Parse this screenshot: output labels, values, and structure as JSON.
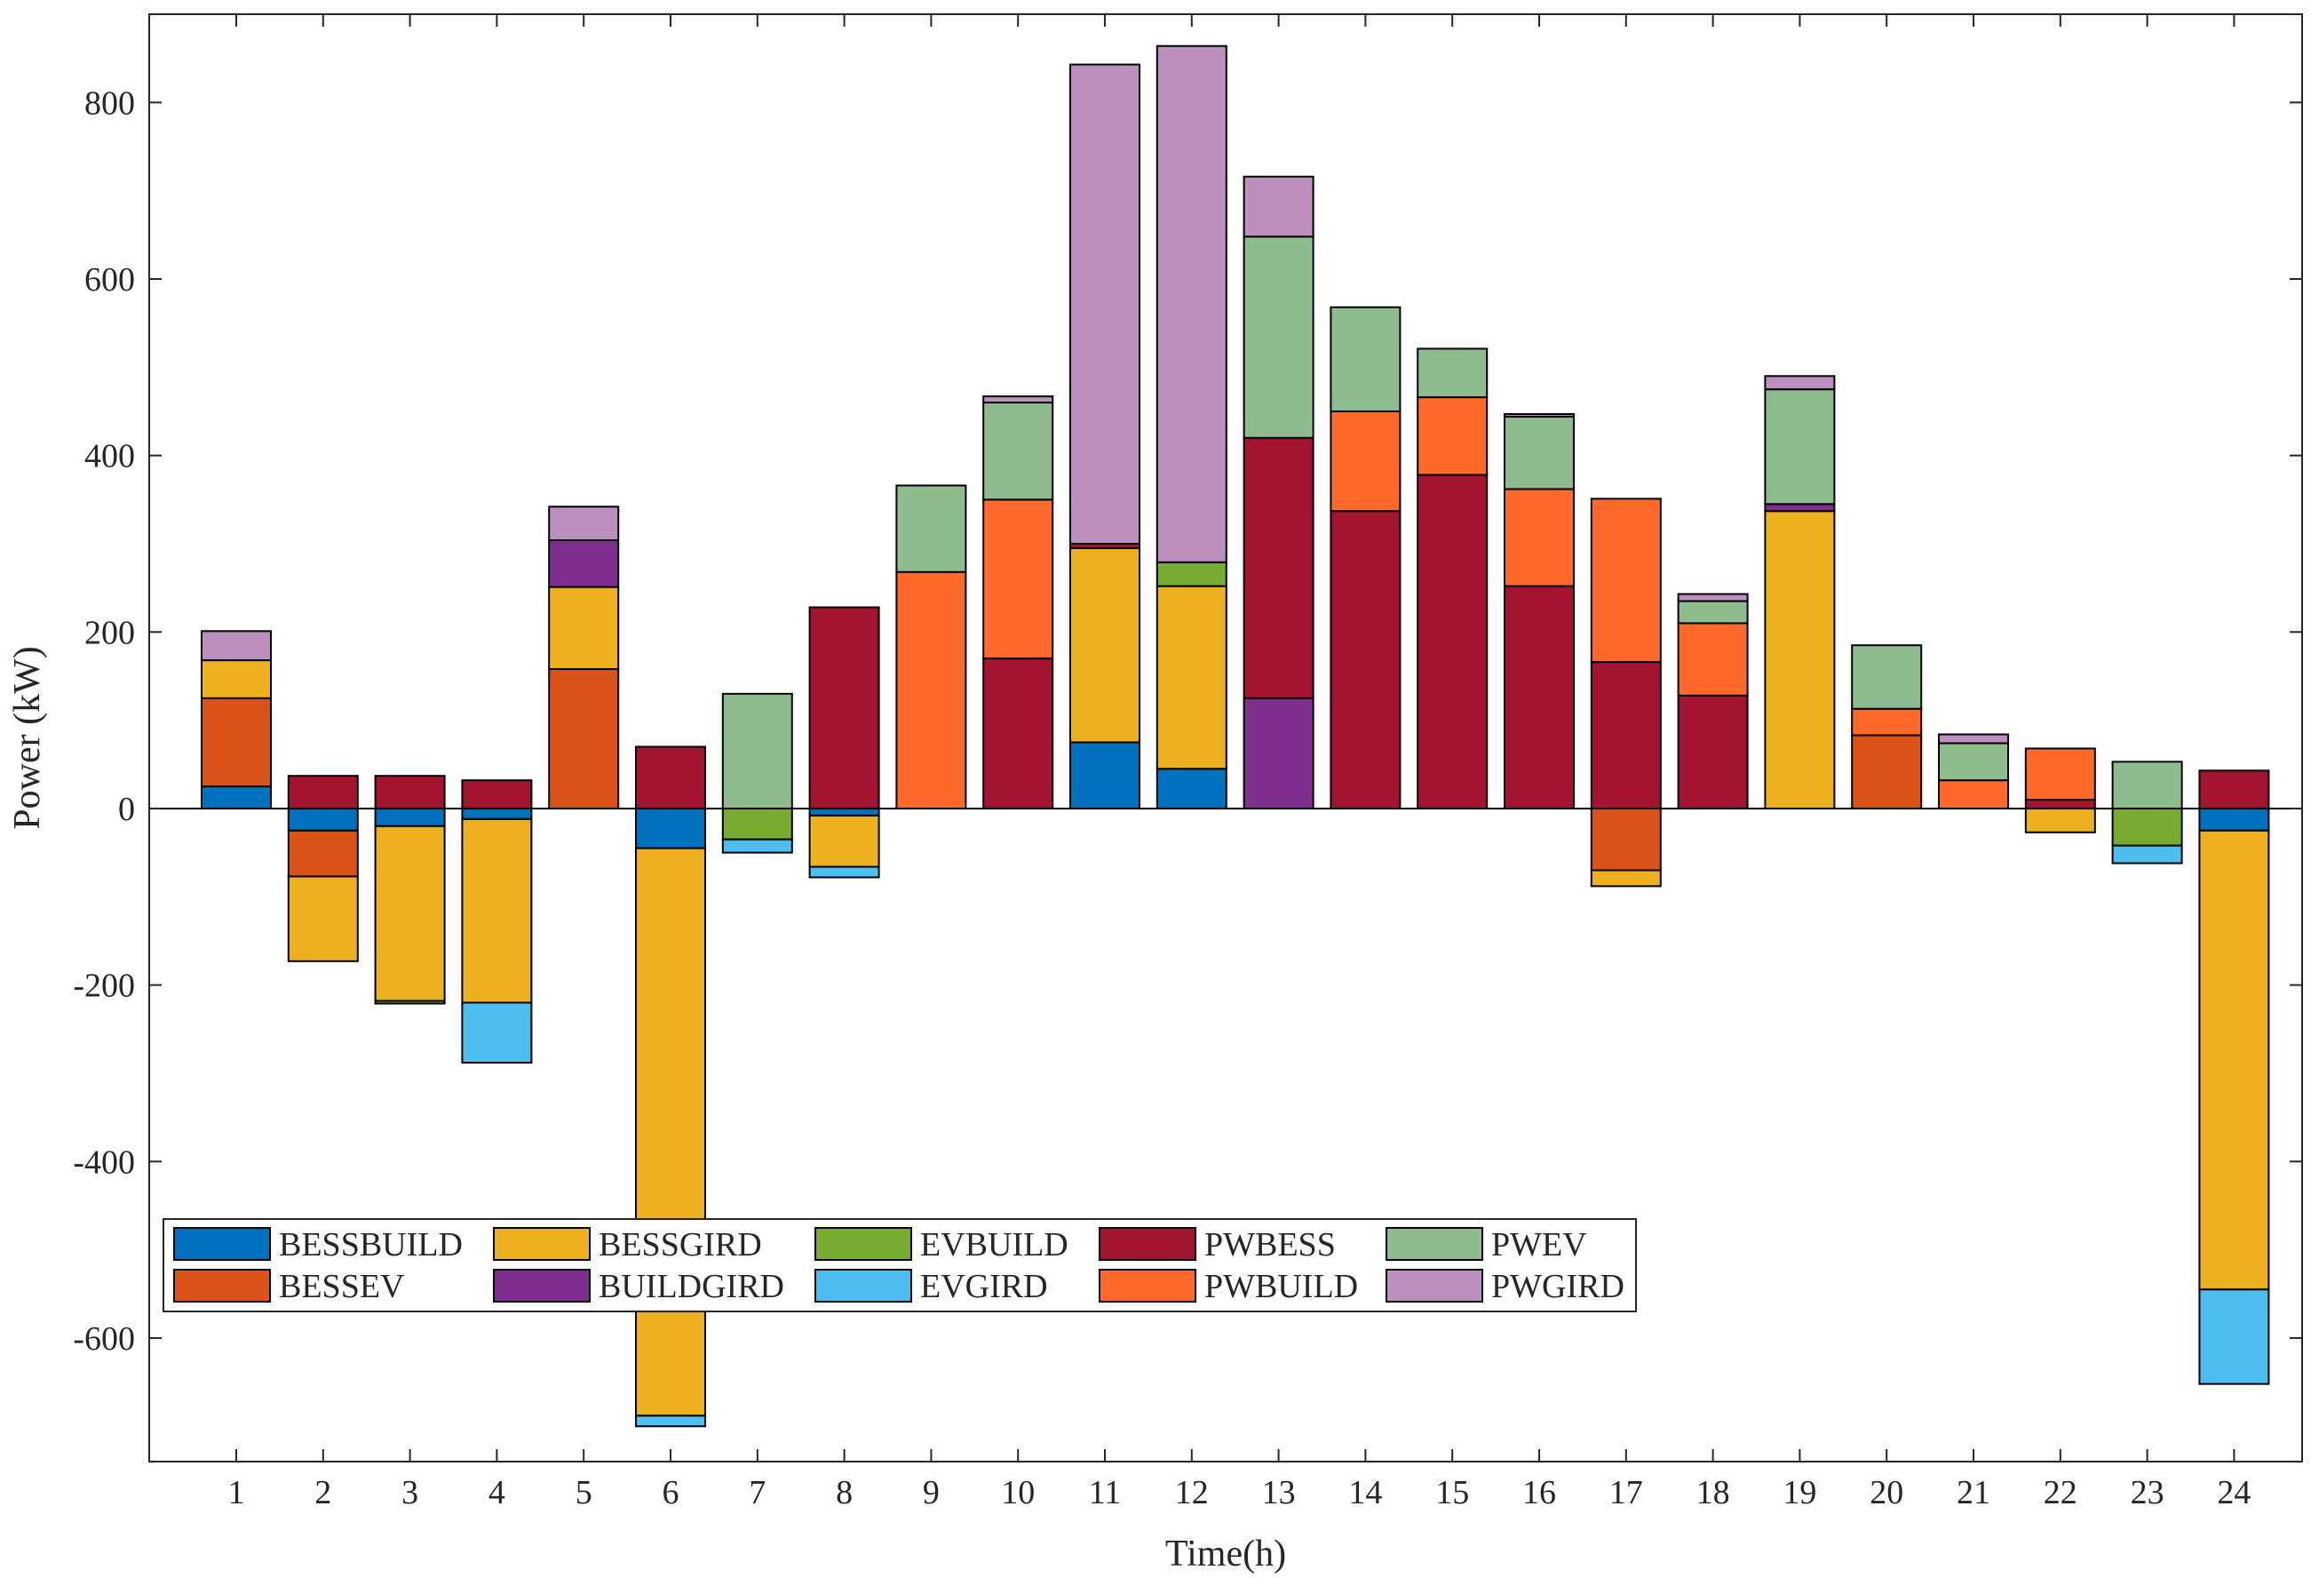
{
  "chart_data": {
    "type": "bar",
    "stacked": true,
    "xlabel": "Time(h)",
    "ylabel": "Power (kW)",
    "ylim": [
      -740,
      900
    ],
    "yticks": [
      -600,
      -400,
      -200,
      0,
      200,
      400,
      600,
      800
    ],
    "grid": false,
    "legend_position": "lower-left",
    "categories": [
      "1",
      "2",
      "3",
      "4",
      "5",
      "6",
      "7",
      "8",
      "9",
      "10",
      "11",
      "12",
      "13",
      "14",
      "15",
      "16",
      "17",
      "18",
      "19",
      "20",
      "21",
      "22",
      "23",
      "24"
    ],
    "series": [
      {
        "name": "BESSBUILD",
        "color": "#0072BD",
        "values": [
          25,
          -25,
          -20,
          -12,
          0,
          -45,
          0,
          -8,
          0,
          0,
          75,
          45,
          0,
          0,
          0,
          0,
          0,
          0,
          0,
          0,
          0,
          0,
          0,
          -25
        ]
      },
      {
        "name": "BESSEV",
        "color": "#D95319",
        "values": [
          100,
          -52,
          0,
          0,
          158,
          0,
          0,
          0,
          0,
          0,
          0,
          0,
          0,
          0,
          0,
          0,
          -70,
          0,
          0,
          83,
          0,
          0,
          0,
          0
        ]
      },
      {
        "name": "BESSGIRD",
        "color": "#EDB120",
        "values": [
          43,
          -96,
          -198,
          -208,
          93,
          -643,
          0,
          -58,
          0,
          0,
          220,
          207,
          0,
          0,
          0,
          0,
          -18,
          0,
          337,
          0,
          0,
          -27,
          0,
          -520
        ]
      },
      {
        "name": "BUILDGIRD",
        "color": "#7E2F8E",
        "values": [
          0,
          0,
          0,
          0,
          53,
          0,
          0,
          0,
          0,
          0,
          0,
          0,
          125,
          0,
          0,
          0,
          0,
          0,
          8,
          0,
          0,
          0,
          0,
          0
        ]
      },
      {
        "name": "EVBUILD",
        "color": "#77AC30",
        "values": [
          0,
          0,
          -3,
          0,
          0,
          0,
          -35,
          0,
          0,
          0,
          0,
          27,
          0,
          0,
          0,
          0,
          0,
          0,
          0,
          0,
          0,
          0,
          -42,
          0
        ]
      },
      {
        "name": "EVGIRD",
        "color": "#4DBEEE",
        "values": [
          0,
          0,
          0,
          -68,
          0,
          -12,
          -15,
          -12,
          0,
          0,
          0,
          0,
          0,
          0,
          0,
          0,
          0,
          0,
          0,
          0,
          0,
          0,
          -20,
          -107
        ]
      },
      {
        "name": "PWBESS",
        "color": "#A2142F",
        "values": [
          0,
          37,
          37,
          32,
          0,
          70,
          0,
          228,
          0,
          170,
          5,
          0,
          295,
          337,
          378,
          252,
          166,
          128,
          0,
          0,
          0,
          10,
          0,
          43
        ]
      },
      {
        "name": "PWBUILD",
        "color": "#FF6929",
        "values": [
          0,
          0,
          0,
          0,
          0,
          0,
          0,
          0,
          268,
          180,
          0,
          0,
          0,
          113,
          88,
          110,
          185,
          82,
          0,
          30,
          32,
          58,
          0,
          0
        ]
      },
      {
        "name": "PWEV",
        "color": "#8FBC8F",
        "values": [
          0,
          0,
          0,
          0,
          0,
          0,
          130,
          0,
          98,
          110,
          0,
          0,
          228,
          118,
          55,
          82,
          0,
          25,
          130,
          72,
          42,
          0,
          53,
          0
        ]
      },
      {
        "name": "PWGIRD",
        "color": "#BC8FBF",
        "values": [
          33,
          0,
          0,
          0,
          38,
          0,
          0,
          0,
          0,
          7,
          543,
          585,
          68,
          0,
          0,
          3,
          0,
          8,
          15,
          0,
          10,
          0,
          0,
          0
        ]
      }
    ]
  }
}
